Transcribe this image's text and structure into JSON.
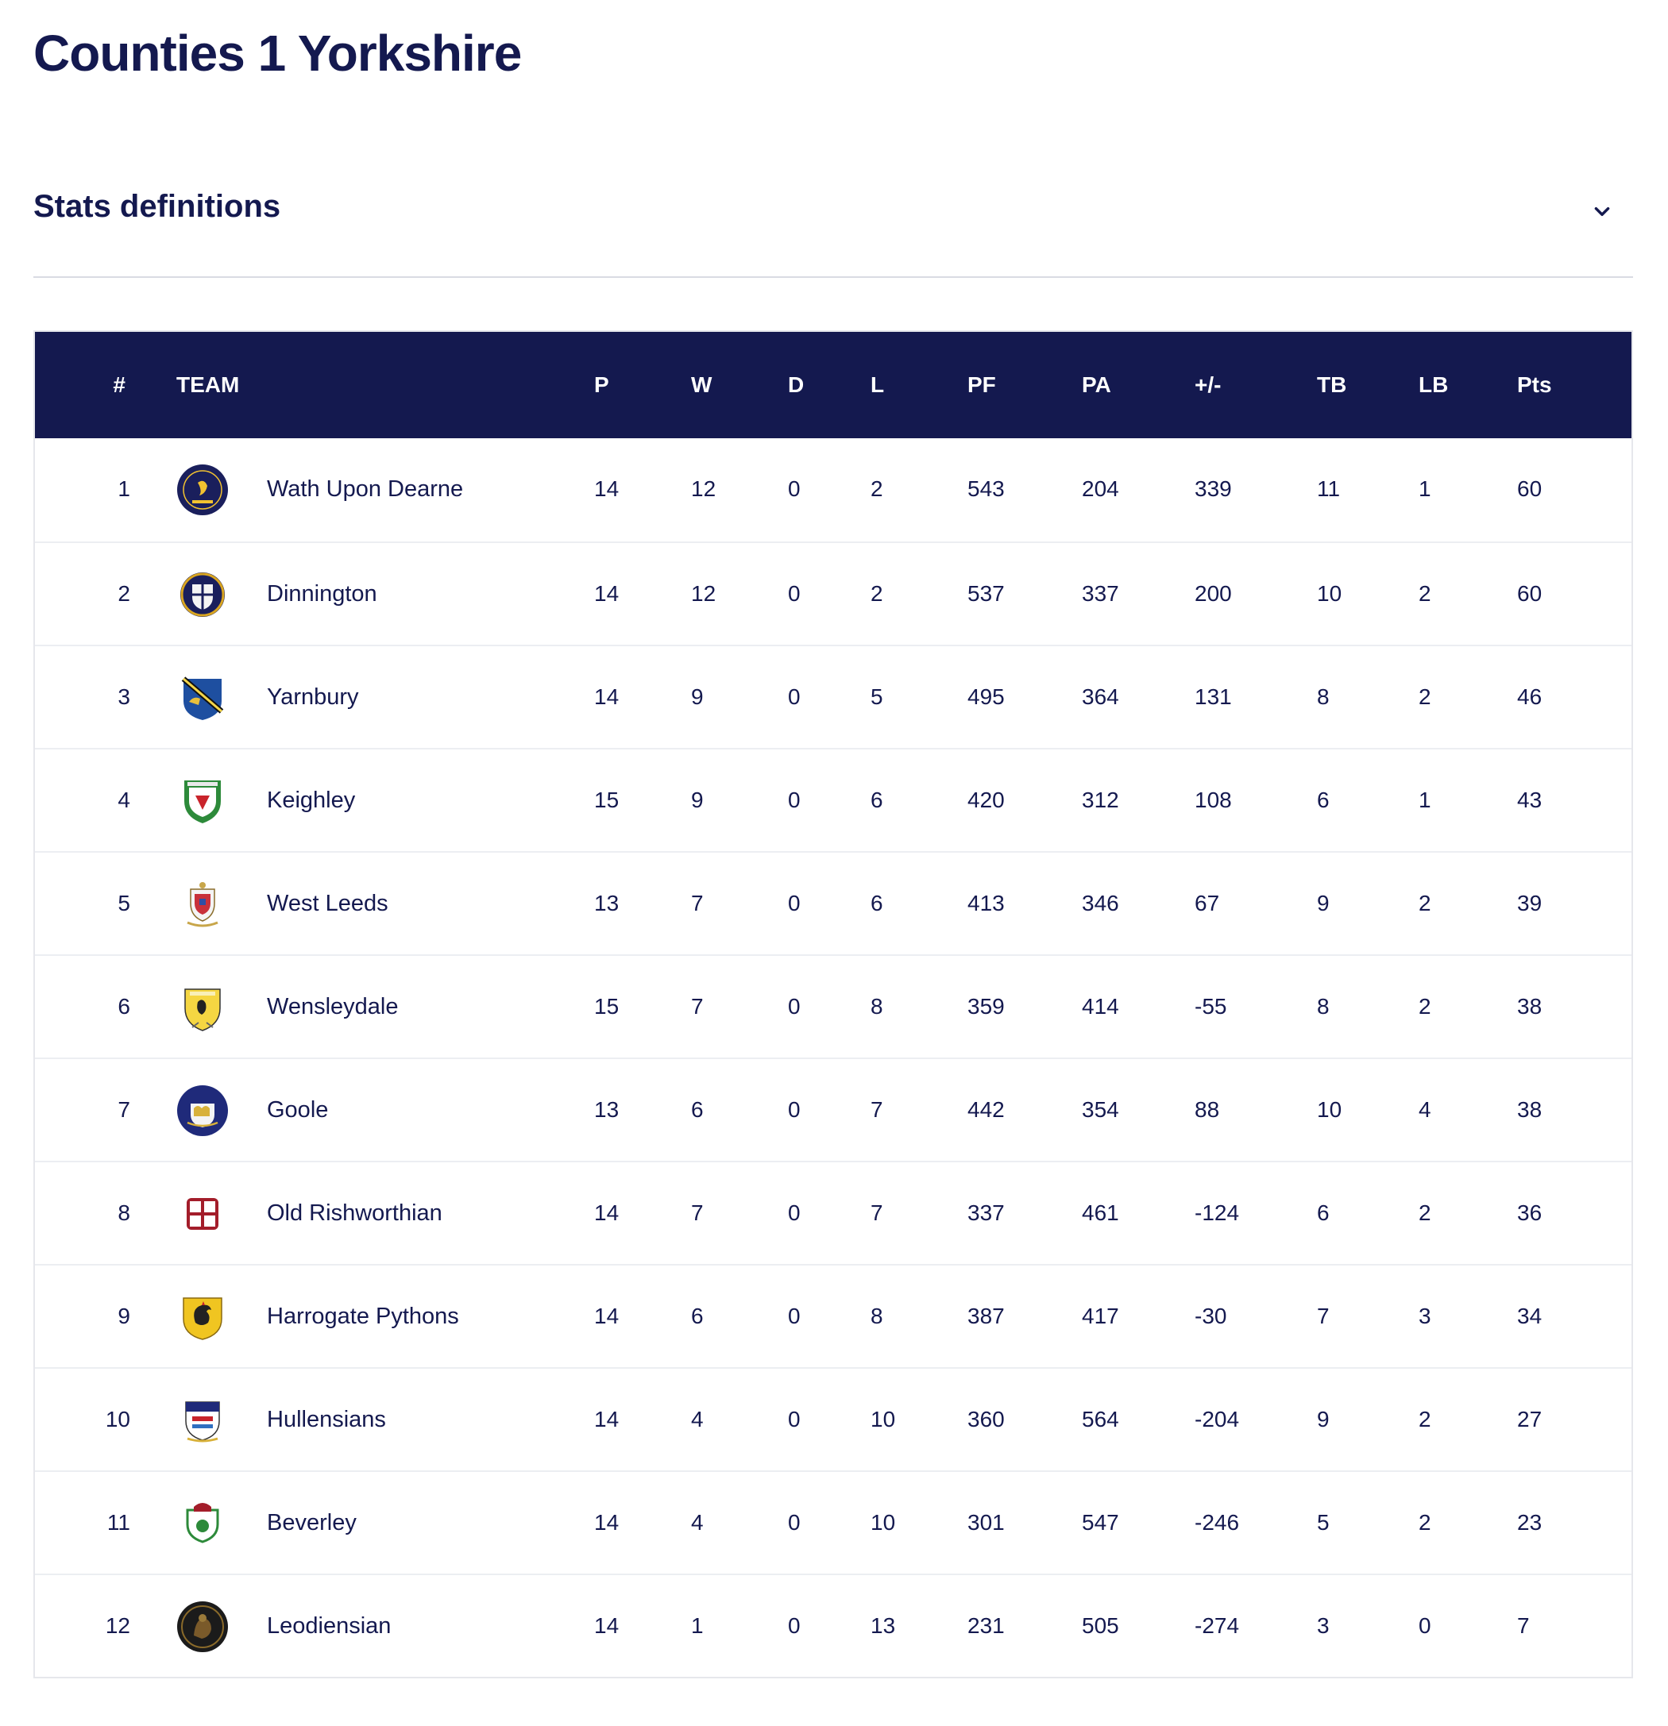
{
  "page": {
    "title": "Counties 1 Yorkshire",
    "stats_definitions_label": "Stats definitions"
  },
  "colors": {
    "navy": "#14194f",
    "row_border": "#eceef2"
  },
  "table": {
    "headers": {
      "pos": "#",
      "team": "TEAM",
      "p": "P",
      "w": "W",
      "d": "D",
      "l": "L",
      "pf": "PF",
      "pa": "PA",
      "pm": "+/-",
      "tb": "TB",
      "lb": "LB",
      "pts": "Pts"
    },
    "rows": [
      {
        "pos": "1",
        "team": "Wath Upon Dearne",
        "logo": "wath-upon-dearne-crest-icon",
        "p": "14",
        "w": "12",
        "d": "0",
        "l": "2",
        "pf": "543",
        "pa": "204",
        "pm": "339",
        "tb": "11",
        "lb": "1",
        "pts": "60"
      },
      {
        "pos": "2",
        "team": "Dinnington",
        "logo": "dinnington-crest-icon",
        "p": "14",
        "w": "12",
        "d": "0",
        "l": "2",
        "pf": "537",
        "pa": "337",
        "pm": "200",
        "tb": "10",
        "lb": "2",
        "pts": "60"
      },
      {
        "pos": "3",
        "team": "Yarnbury",
        "logo": "yarnbury-crest-icon",
        "p": "14",
        "w": "9",
        "d": "0",
        "l": "5",
        "pf": "495",
        "pa": "364",
        "pm": "131",
        "tb": "8",
        "lb": "2",
        "pts": "46"
      },
      {
        "pos": "4",
        "team": "Keighley",
        "logo": "keighley-crest-icon",
        "p": "15",
        "w": "9",
        "d": "0",
        "l": "6",
        "pf": "420",
        "pa": "312",
        "pm": "108",
        "tb": "6",
        "lb": "1",
        "pts": "43"
      },
      {
        "pos": "5",
        "team": "West Leeds",
        "logo": "west-leeds-crest-icon",
        "p": "13",
        "w": "7",
        "d": "0",
        "l": "6",
        "pf": "413",
        "pa": "346",
        "pm": "67",
        "tb": "9",
        "lb": "2",
        "pts": "39"
      },
      {
        "pos": "6",
        "team": "Wensleydale",
        "logo": "wensleydale-crest-icon",
        "p": "15",
        "w": "7",
        "d": "0",
        "l": "8",
        "pf": "359",
        "pa": "414",
        "pm": "-55",
        "tb": "8",
        "lb": "2",
        "pts": "38"
      },
      {
        "pos": "7",
        "team": "Goole",
        "logo": "goole-crest-icon",
        "p": "13",
        "w": "6",
        "d": "0",
        "l": "7",
        "pf": "442",
        "pa": "354",
        "pm": "88",
        "tb": "10",
        "lb": "4",
        "pts": "38"
      },
      {
        "pos": "8",
        "team": "Old Rishworthian",
        "logo": "old-rishworthian-crest-icon",
        "p": "14",
        "w": "7",
        "d": "0",
        "l": "7",
        "pf": "337",
        "pa": "461",
        "pm": "-124",
        "tb": "6",
        "lb": "2",
        "pts": "36"
      },
      {
        "pos": "9",
        "team": "Harrogate Pythons",
        "logo": "harrogate-pythons-crest-icon",
        "p": "14",
        "w": "6",
        "d": "0",
        "l": "8",
        "pf": "387",
        "pa": "417",
        "pm": "-30",
        "tb": "7",
        "lb": "3",
        "pts": "34"
      },
      {
        "pos": "10",
        "team": "Hullensians",
        "logo": "hullensians-crest-icon",
        "p": "14",
        "w": "4",
        "d": "0",
        "l": "10",
        "pf": "360",
        "pa": "564",
        "pm": "-204",
        "tb": "9",
        "lb": "2",
        "pts": "27"
      },
      {
        "pos": "11",
        "team": "Beverley",
        "logo": "beverley-crest-icon",
        "p": "14",
        "w": "4",
        "d": "0",
        "l": "10",
        "pf": "301",
        "pa": "547",
        "pm": "-246",
        "tb": "5",
        "lb": "2",
        "pts": "23"
      },
      {
        "pos": "12",
        "team": "Leodiensian",
        "logo": "leodiensian-crest-icon",
        "p": "14",
        "w": "1",
        "d": "0",
        "l": "13",
        "pf": "231",
        "pa": "505",
        "pm": "-274",
        "tb": "3",
        "lb": "0",
        "pts": "7"
      }
    ]
  }
}
